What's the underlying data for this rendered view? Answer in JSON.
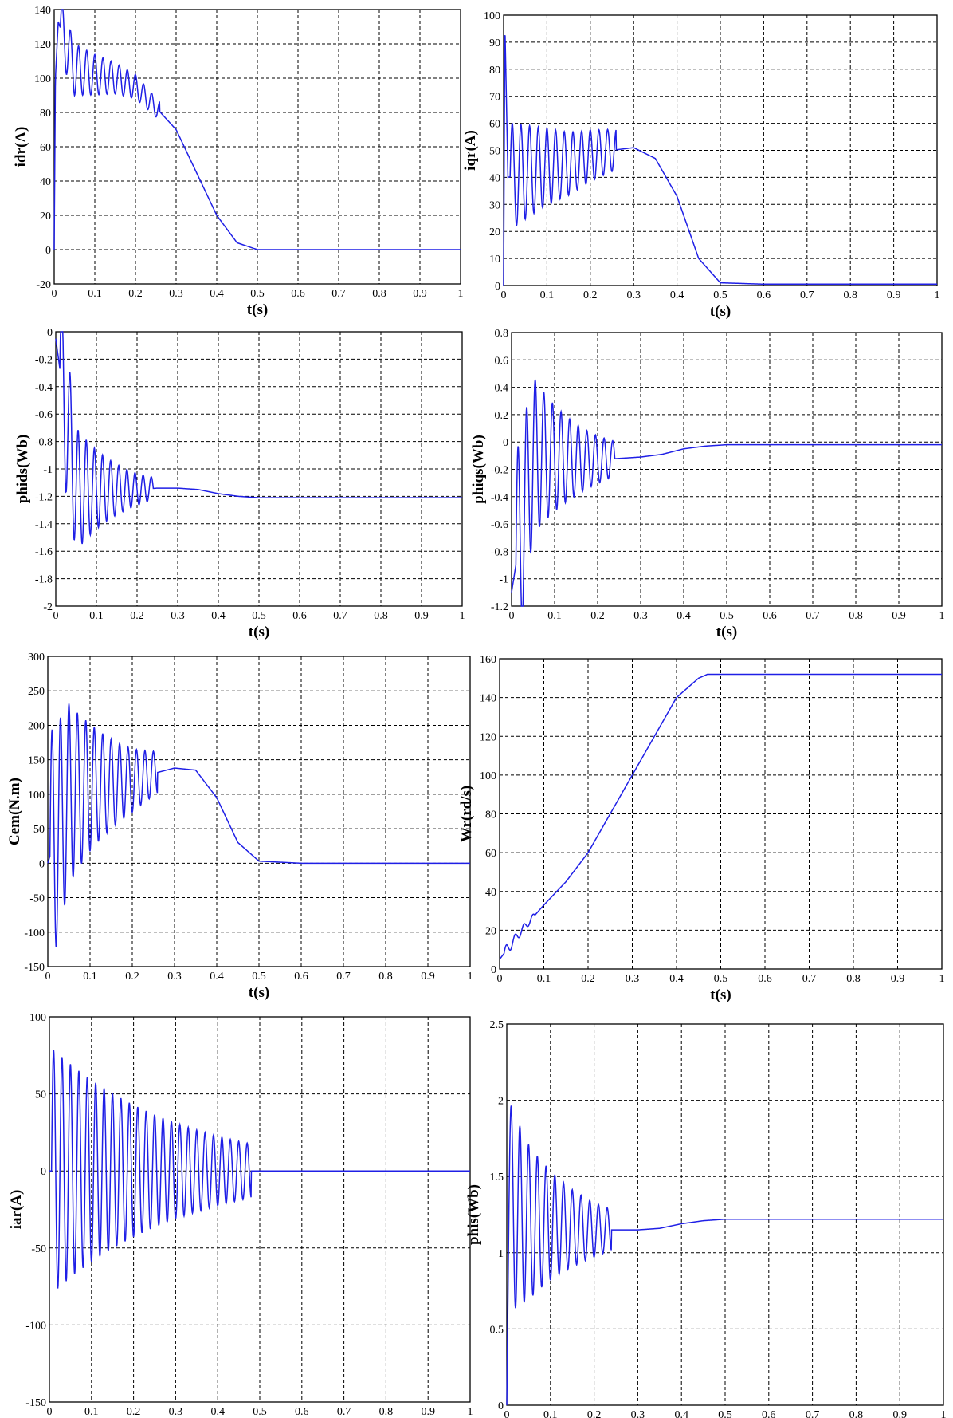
{
  "figure": {
    "color": "#1f1fe6"
  },
  "chart_data": [
    {
      "type": "line",
      "xlabel": "t(s)",
      "ylabel": "idr(A)",
      "xlim": [
        0,
        1
      ],
      "ylim": [
        -20,
        140
      ],
      "xticks": [
        "0",
        "0.1",
        "0.2",
        "0.3",
        "0.4",
        "0.5",
        "0.6",
        "0.7",
        "0.8",
        "0.9",
        "1"
      ],
      "yticks": [
        "-20",
        "0",
        "20",
        "40",
        "60",
        "80",
        "100",
        "120",
        "140"
      ],
      "grid": true,
      "x": [
        0,
        0.003,
        0.01,
        0.05,
        0.1,
        0.15,
        0.2,
        0.25,
        0.3,
        0.35,
        0.4,
        0.45,
        0.5,
        0.6,
        0.7,
        0.8,
        0.9,
        1.0
      ],
      "y": [
        0,
        100,
        133,
        105,
        102,
        100,
        95,
        83,
        70,
        45,
        20,
        4,
        0,
        0,
        0,
        0,
        0,
        0
      ]
    },
    {
      "type": "line",
      "xlabel": "t(s)",
      "ylabel": "iqr(A)",
      "xlim": [
        0,
        1
      ],
      "ylim": [
        0,
        100
      ],
      "xticks": [
        "0",
        "0.1",
        "0.2",
        "0.3",
        "0.4",
        "0.5",
        "0.6",
        "0.7",
        "0.8",
        "0.9",
        "1"
      ],
      "yticks": [
        "0",
        "10",
        "20",
        "30",
        "40",
        "50",
        "60",
        "70",
        "80",
        "90",
        "100"
      ],
      "grid": true,
      "x": [
        0,
        0.003,
        0.01,
        0.05,
        0.1,
        0.15,
        0.2,
        0.25,
        0.3,
        0.35,
        0.4,
        0.45,
        0.5,
        0.6,
        0.8,
        1.0
      ],
      "y": [
        0,
        97,
        40,
        42,
        44,
        45,
        48,
        50,
        51,
        47,
        33,
        10,
        1,
        0.5,
        0.5,
        0.5
      ]
    },
    {
      "type": "line",
      "xlabel": "t(s)",
      "ylabel": "phids(Wb)",
      "xlim": [
        0,
        1
      ],
      "ylim": [
        -2,
        0
      ],
      "xticks": [
        "0",
        "0.1",
        "0.2",
        "0.3",
        "0.4",
        "0.5",
        "0.6",
        "0.7",
        "0.8",
        "0.9",
        "1"
      ],
      "yticks": [
        "-2",
        "-1.8",
        "-1.6",
        "-1.4",
        "-1.2",
        "-1",
        "-0.8",
        "-0.6",
        "-0.4",
        "-0.2",
        "0"
      ],
      "grid": true,
      "x": [
        0,
        0.05,
        0.1,
        0.15,
        0.2,
        0.25,
        0.3,
        0.35,
        0.4,
        0.45,
        0.5,
        0.6,
        0.8,
        1.0
      ],
      "y": [
        -0.05,
        -1.15,
        -1.15,
        -1.15,
        -1.15,
        -1.14,
        -1.14,
        -1.15,
        -1.18,
        -1.2,
        -1.21,
        -1.21,
        -1.21,
        -1.21
      ]
    },
    {
      "type": "line",
      "xlabel": "t(s)",
      "ylabel": "phiqs(Wb)",
      "xlim": [
        0,
        1
      ],
      "ylim": [
        -1.2,
        0.8
      ],
      "xticks": [
        "0",
        "0.1",
        "0.2",
        "0.3",
        "0.4",
        "0.5",
        "0.6",
        "0.7",
        "0.8",
        "0.9",
        "1"
      ],
      "yticks": [
        "-1.2",
        "-1",
        "-0.8",
        "-0.6",
        "-0.4",
        "-0.2",
        "0",
        "0.2",
        "0.4",
        "0.6",
        "0.8"
      ],
      "grid": true,
      "x": [
        0,
        0.05,
        0.1,
        0.15,
        0.2,
        0.25,
        0.3,
        0.35,
        0.4,
        0.45,
        0.5,
        0.6,
        0.8,
        1.0
      ],
      "y": [
        -1.1,
        -0.1,
        -0.12,
        -0.13,
        -0.13,
        -0.12,
        -0.11,
        -0.09,
        -0.05,
        -0.03,
        -0.02,
        -0.02,
        -0.02,
        -0.02
      ]
    },
    {
      "type": "line",
      "xlabel": "t(s)",
      "ylabel": "Cem(N.m)",
      "xlim": [
        0,
        1
      ],
      "ylim": [
        -150,
        300
      ],
      "xticks": [
        "0",
        "0.1",
        "0.2",
        "0.3",
        "0.4",
        "0.5",
        "0.6",
        "0.7",
        "0.8",
        "0.9",
        "1"
      ],
      "yticks": [
        "-150",
        "-100",
        "-50",
        "0",
        "50",
        "100",
        "150",
        "200",
        "250",
        "300"
      ],
      "grid": true,
      "x": [
        0,
        0.05,
        0.1,
        0.15,
        0.2,
        0.25,
        0.3,
        0.35,
        0.4,
        0.45,
        0.5,
        0.6,
        0.8,
        1.0
      ],
      "y": [
        0,
        100,
        110,
        115,
        120,
        130,
        138,
        135,
        95,
        30,
        3,
        0,
        0,
        0
      ]
    },
    {
      "type": "line",
      "xlabel": "t(s)",
      "ylabel": "Wr(rd/s)",
      "xlim": [
        0,
        1
      ],
      "ylim": [
        0,
        160
      ],
      "xticks": [
        "0",
        "0.1",
        "0.2",
        "0.3",
        "0.4",
        "0.5",
        "0.6",
        "0.7",
        "0.8",
        "0.9",
        "1"
      ],
      "yticks": [
        "0",
        "20",
        "40",
        "60",
        "80",
        "100",
        "120",
        "140",
        "160"
      ],
      "grid": true,
      "x": [
        0,
        0.05,
        0.1,
        0.15,
        0.2,
        0.25,
        0.3,
        0.35,
        0.4,
        0.45,
        0.47,
        0.5,
        0.6,
        0.8,
        1.0
      ],
      "y": [
        5,
        20,
        33,
        45,
        60,
        80,
        100,
        120,
        140,
        150,
        152,
        152,
        152,
        152,
        152
      ]
    },
    {
      "type": "line",
      "xlabel": "t(s)",
      "ylabel": "iar(A)",
      "xlim": [
        0,
        1
      ],
      "ylim": [
        -150,
        100
      ],
      "xticks": [
        "0",
        "0.1",
        "0.2",
        "0.3",
        "0.4",
        "0.5",
        "0.6",
        "0.7",
        "0.8",
        "0.9",
        "1"
      ],
      "yticks": [
        "-150",
        "-100",
        "-50",
        "0",
        "50",
        "100"
      ],
      "grid": true,
      "x": [
        0,
        0.05,
        0.1,
        0.15,
        0.2,
        0.25,
        0.3,
        0.35,
        0.4,
        0.45,
        0.5,
        0.6,
        0.8,
        1.0
      ],
      "y": [
        0,
        0,
        0,
        0,
        0,
        0,
        0,
        0,
        0,
        0,
        0,
        0,
        0,
        0
      ]
    },
    {
      "type": "line",
      "xlabel": "t(s)",
      "ylabel": "phis(Wb)",
      "xlim": [
        0,
        1
      ],
      "ylim": [
        0,
        2.5
      ],
      "xticks": [
        "0",
        "0.1",
        "0.2",
        "0.3",
        "0.4",
        "0.5",
        "0.6",
        "0.7",
        "0.8",
        "0.9",
        "1"
      ],
      "yticks": [
        "0",
        "0.5",
        "1",
        "1.5",
        "2",
        "2.5"
      ],
      "grid": true,
      "x": [
        0,
        0.005,
        0.05,
        0.1,
        0.15,
        0.2,
        0.25,
        0.3,
        0.35,
        0.4,
        0.45,
        0.5,
        0.6,
        0.8,
        1.0
      ],
      "y": [
        0,
        1.3,
        1.2,
        1.18,
        1.16,
        1.15,
        1.15,
        1.15,
        1.16,
        1.19,
        1.21,
        1.22,
        1.22,
        1.22,
        1.22
      ]
    }
  ]
}
